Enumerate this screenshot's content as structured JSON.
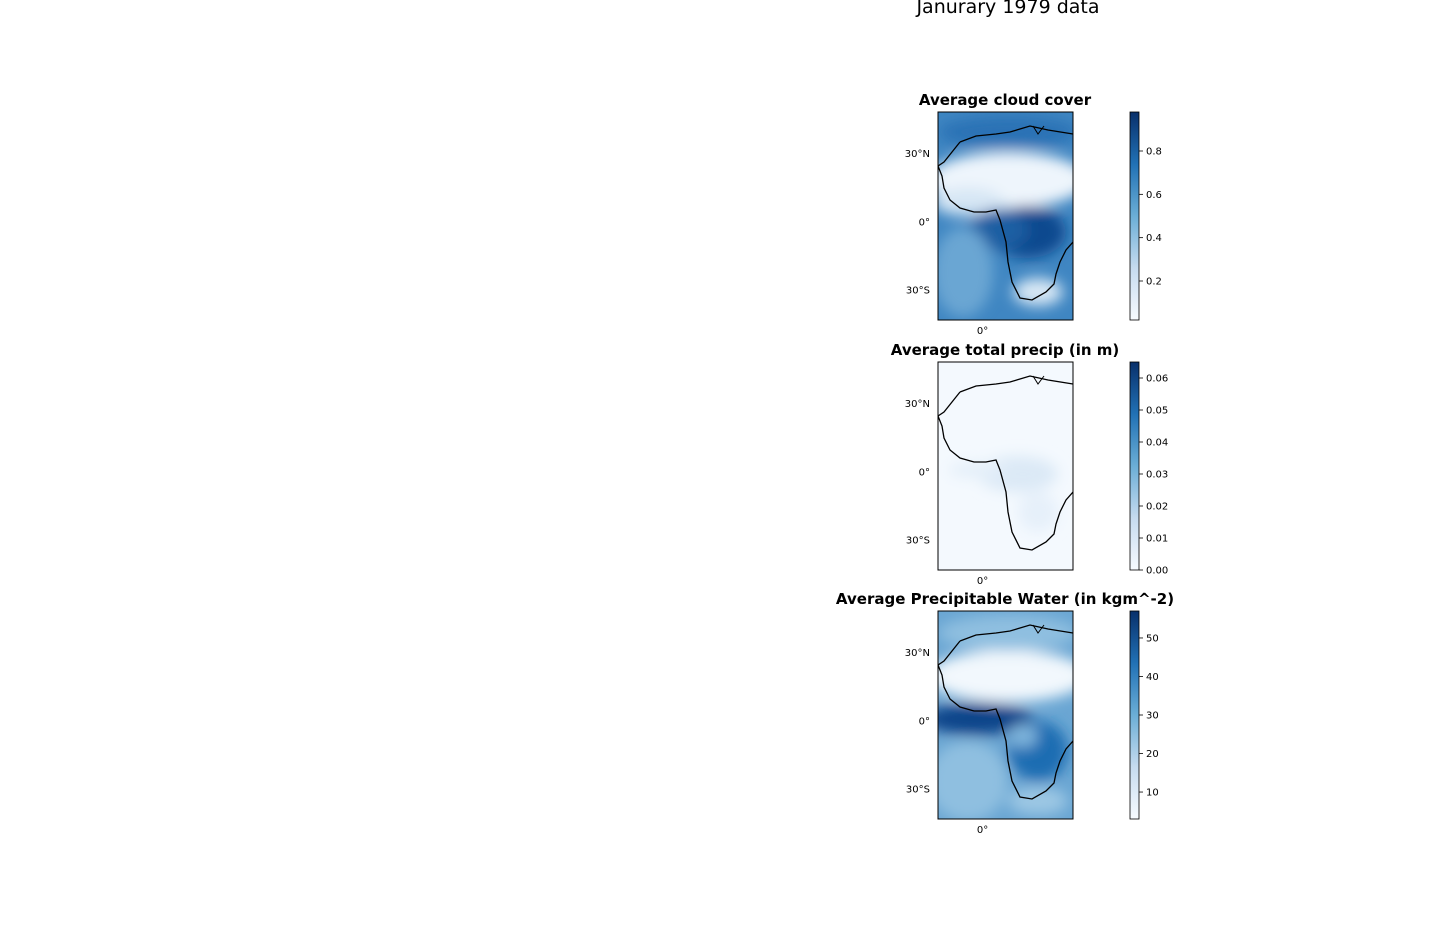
{
  "figure": {
    "suptitle": "Janurary 1979 data"
  },
  "colors": {
    "cmap_low": "#f7fbff",
    "cmap_mid": "#6baed6",
    "cmap_high": "#08306b",
    "coast": "#000000"
  },
  "chart_data": [
    {
      "type": "heatmap",
      "title": "Average cloud cover",
      "cmap": "Blues",
      "lat_ticks": [
        "30°N",
        "0°",
        "30°S"
      ],
      "lon_ticks": [
        "0°"
      ],
      "colorbar": {
        "range": [
          0.02,
          0.98
        ],
        "ticks": [
          0.2,
          0.4,
          0.6,
          0.8
        ],
        "tick_labels": [
          "0.2",
          "0.4",
          "0.6",
          "0.8"
        ]
      }
    },
    {
      "type": "heatmap",
      "title": "Average total precip (in m)",
      "cmap": "Blues",
      "lat_ticks": [
        "30°N",
        "0°",
        "30°S"
      ],
      "lon_ticks": [
        "0°"
      ],
      "colorbar": {
        "range": [
          0.0,
          0.065
        ],
        "ticks": [
          0.0,
          0.01,
          0.02,
          0.03,
          0.04,
          0.05,
          0.06
        ],
        "tick_labels": [
          "0.00",
          "0.01",
          "0.02",
          "0.03",
          "0.04",
          "0.05",
          "0.06"
        ]
      }
    },
    {
      "type": "heatmap",
      "title": "Average Precipitable Water (in kgm^-2)",
      "cmap": "Blues",
      "lat_ticks": [
        "30°N",
        "0°",
        "30°S"
      ],
      "lon_ticks": [
        "0°"
      ],
      "colorbar": {
        "range": [
          3,
          57
        ],
        "ticks": [
          10,
          20,
          30,
          40,
          50
        ],
        "tick_labels": [
          "10",
          "20",
          "30",
          "40",
          "50"
        ]
      }
    }
  ]
}
